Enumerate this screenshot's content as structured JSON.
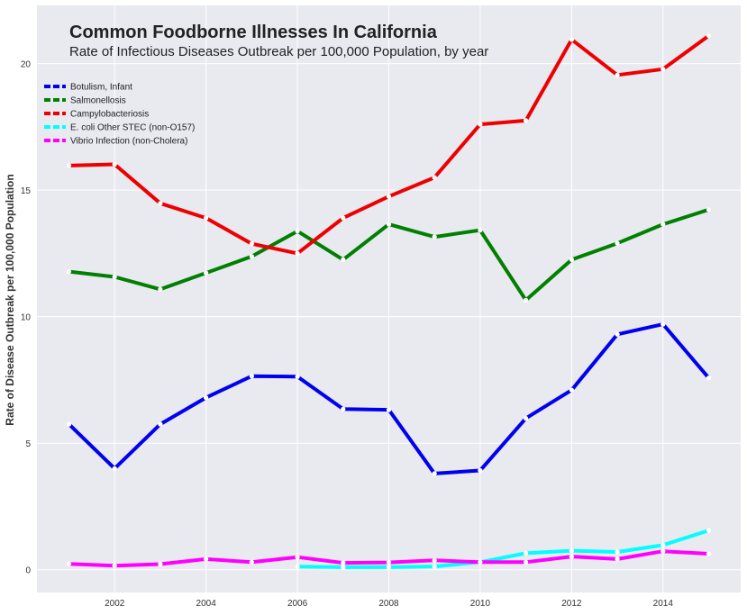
{
  "chart_data": {
    "type": "line",
    "title": "Common Foodborne Illnesses In California",
    "subtitle": "Rate of Infectious Diseases Outbreak per 100,000 Population, by year",
    "xlabel": "",
    "ylabel": "Rate of Disease Outbreak per 100,000 Population",
    "xlim": [
      2000.3,
      2015.7
    ],
    "ylim": [
      -0.9,
      22.3
    ],
    "x_ticks": [
      2002,
      2004,
      2006,
      2008,
      2010,
      2012,
      2014
    ],
    "y_ticks": [
      0,
      5,
      10,
      15,
      20
    ],
    "grid": true,
    "legend_position": "upper-left",
    "series": [
      {
        "name": "Botulism, Infant",
        "color": "#0000ee",
        "points": [
          [
            2001,
            5.75
          ],
          [
            2002,
            4.0
          ],
          [
            2003,
            5.75
          ],
          [
            2004,
            6.8
          ],
          [
            2005,
            7.65
          ],
          [
            2006,
            7.63
          ],
          [
            2007,
            6.35
          ],
          [
            2008,
            6.32
          ],
          [
            2009,
            3.8
          ],
          [
            2010,
            3.92
          ],
          [
            2011,
            5.98
          ],
          [
            2012,
            7.1
          ],
          [
            2013,
            9.3
          ],
          [
            2014,
            9.7
          ],
          [
            2015,
            7.58
          ]
        ]
      },
      {
        "name": "Salmonellosis",
        "color": "#008000",
        "points": [
          [
            2001,
            11.78
          ],
          [
            2002,
            11.57
          ],
          [
            2003,
            11.08
          ],
          [
            2004,
            11.73
          ],
          [
            2005,
            12.38
          ],
          [
            2006,
            13.38
          ],
          [
            2007,
            12.25
          ],
          [
            2008,
            13.65
          ],
          [
            2009,
            13.15
          ],
          [
            2010,
            13.42
          ],
          [
            2011,
            10.65
          ],
          [
            2012,
            12.25
          ],
          [
            2013,
            12.9
          ],
          [
            2014,
            13.65
          ],
          [
            2015,
            14.23
          ]
        ]
      },
      {
        "name": "Campylobacteriosis",
        "color": "#ee0000",
        "points": [
          [
            2001,
            15.97
          ],
          [
            2002,
            16.02
          ],
          [
            2003,
            14.48
          ],
          [
            2004,
            13.9
          ],
          [
            2005,
            12.88
          ],
          [
            2006,
            12.5
          ],
          [
            2007,
            13.9
          ],
          [
            2008,
            14.75
          ],
          [
            2009,
            15.5
          ],
          [
            2010,
            17.6
          ],
          [
            2011,
            17.75
          ],
          [
            2012,
            20.95
          ],
          [
            2013,
            19.55
          ],
          [
            2014,
            19.78
          ],
          [
            2015,
            21.1
          ]
        ]
      },
      {
        "name": "E. coli Other STEC (non-O157)",
        "color": "#00ffff",
        "points": [
          [
            2006,
            0.12
          ],
          [
            2007,
            0.1
          ],
          [
            2008,
            0.1
          ],
          [
            2009,
            0.13
          ],
          [
            2010,
            0.3
          ],
          [
            2011,
            0.65
          ],
          [
            2012,
            0.75
          ],
          [
            2013,
            0.7
          ],
          [
            2014,
            0.97
          ],
          [
            2015,
            1.55
          ]
        ]
      },
      {
        "name": "Vibrio Infection (non-Cholera)",
        "color": "#ff00ff",
        "points": [
          [
            2001,
            0.23
          ],
          [
            2002,
            0.16
          ],
          [
            2003,
            0.22
          ],
          [
            2004,
            0.42
          ],
          [
            2005,
            0.3
          ],
          [
            2006,
            0.5
          ],
          [
            2007,
            0.27
          ],
          [
            2008,
            0.29
          ],
          [
            2009,
            0.37
          ],
          [
            2010,
            0.3
          ],
          [
            2011,
            0.3
          ],
          [
            2012,
            0.52
          ],
          [
            2013,
            0.42
          ],
          [
            2014,
            0.73
          ],
          [
            2015,
            0.63
          ]
        ]
      }
    ]
  }
}
